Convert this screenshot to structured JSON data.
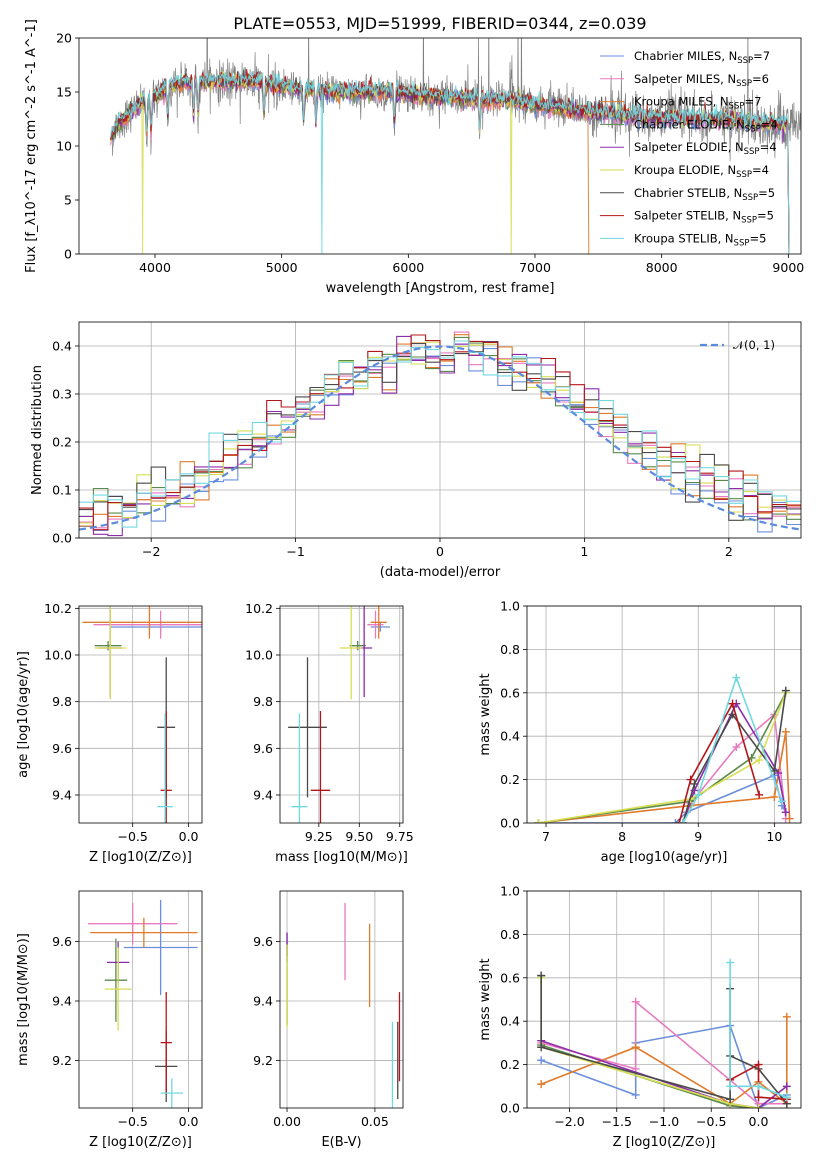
{
  "title": "PLATE=0553, MJD=51999, FIBERID=0344, z=0.039",
  "models": [
    {
      "name": "Chabrier MILES",
      "nssp": "7",
      "color": "#6b8fdd"
    },
    {
      "name": "Salpeter MILES",
      "nssp": "6",
      "color": "#e87ac0"
    },
    {
      "name": "Kroupa MILES",
      "nssp": "7",
      "color": "#e07b2b"
    },
    {
      "name": "Chabrier ELODIE",
      "nssp": "4",
      "color": "#5a8a4a"
    },
    {
      "name": "Salpeter ELODIE",
      "nssp": "4",
      "color": "#8d2cab"
    },
    {
      "name": "Kroupa ELODIE",
      "nssp": "4",
      "color": "#d7de53"
    },
    {
      "name": "Chabrier STELIB",
      "nssp": "5",
      "color": "#4a4a4a"
    },
    {
      "name": "Salpeter STELIB",
      "nssp": "5",
      "color": "#b3161a"
    },
    {
      "name": "Kroupa STELIB",
      "nssp": "5",
      "color": "#72d8e0"
    }
  ],
  "chart_data": [
    {
      "id": "spectrum",
      "type": "line",
      "xlabel": "wavelength [Angstrom, rest frame]",
      "ylabel": "Flux [f_λ10^-17 erg cm^-2 s^-1 A^-1]",
      "xlim": [
        3400,
        9100
      ],
      "ylim": [
        0,
        20
      ],
      "xticks": [
        4000,
        5000,
        6000,
        7000,
        8000,
        9000
      ],
      "yticks": [
        0,
        5,
        10,
        15,
        20
      ],
      "legend": "upper right",
      "data_color": "#808080",
      "data_range": [
        3650,
        9100
      ],
      "continuum": [
        [
          3650,
          10.5
        ],
        [
          3700,
          12
        ],
        [
          3800,
          13
        ],
        [
          3900,
          14
        ],
        [
          4000,
          14.5
        ],
        [
          4100,
          15.5
        ],
        [
          4200,
          15.8
        ],
        [
          4400,
          16
        ],
        [
          4600,
          16
        ],
        [
          4800,
          16
        ],
        [
          5000,
          15.5
        ],
        [
          5200,
          15.2
        ],
        [
          5400,
          15
        ],
        [
          5600,
          15
        ],
        [
          5800,
          15
        ],
        [
          6000,
          14.8
        ],
        [
          6200,
          14.5
        ],
        [
          6400,
          14.5
        ],
        [
          6600,
          14.2
        ],
        [
          6800,
          14.3
        ],
        [
          7000,
          13.8
        ],
        [
          7200,
          13.5
        ],
        [
          7400,
          13.2
        ],
        [
          7600,
          13
        ],
        [
          7800,
          12.7
        ],
        [
          8000,
          12.6
        ],
        [
          8200,
          12.5
        ],
        [
          8400,
          12.5
        ],
        [
          8600,
          12.3
        ],
        [
          8800,
          12.1
        ],
        [
          9000,
          12
        ],
        [
          9100,
          12
        ]
      ],
      "model_cutoffs": [
        9000,
        9000,
        7420,
        9000,
        9000,
        9000,
        9000,
        9000,
        9000
      ],
      "model_drops": [
        {
          "model": 8,
          "wavelength": 5320,
          "flux": 0
        },
        {
          "model": 5,
          "wavelength": 3900,
          "flux": 0
        },
        {
          "model": 5,
          "wavelength": 6810,
          "flux": 0
        }
      ]
    },
    {
      "id": "residual_hist",
      "type": "step",
      "xlabel": "(data-model)/error",
      "ylabel": "Normed distribution",
      "xlim": [
        -2.5,
        2.5
      ],
      "ylim": [
        0,
        0.45
      ],
      "xticks": [
        -2,
        -1,
        0,
        1,
        2
      ],
      "yticks": [
        0,
        0.1,
        0.2,
        0.3,
        0.4
      ],
      "grid": true,
      "legend": "upper right",
      "reference": {
        "label": "𝒩(0, 1)",
        "mean": 0,
        "sigma": 1,
        "color": "#5b8bdc"
      },
      "bin_width": 0.1
    },
    {
      "id": "age_vs_Z",
      "type": "errorbar",
      "xlabel": "Z [log10(Z/Z⊙)]",
      "ylabel": "age [log10(age/yr)]",
      "xlim": [
        -0.98,
        0.12
      ],
      "ylim": [
        9.28,
        10.21
      ],
      "xticks": [
        -0.5,
        0
      ],
      "yticks": [
        9.4,
        9.6,
        9.8,
        10.0,
        10.2
      ],
      "grid": true,
      "points": [
        {
          "m": 0,
          "x": -0.25,
          "y": 10.12,
          "xerr": 0.45,
          "yerr": 0.02
        },
        {
          "m": 1,
          "x": -0.25,
          "y": 10.13,
          "xerr": 0.6,
          "yerr": 0.06
        },
        {
          "m": 2,
          "x": -0.35,
          "y": 10.14,
          "xerr": 0.6,
          "yerr": 0.07
        },
        {
          "m": 3,
          "x": -0.72,
          "y": 10.04,
          "xerr": 0.12,
          "yerr": 0.02
        },
        {
          "m": 4,
          "x": -0.7,
          "y": 10.03,
          "xerr": 0.1,
          "yerr": 0.21
        },
        {
          "m": 5,
          "x": -0.7,
          "y": 10.03,
          "xerr": 0.14,
          "yerr": 0.22
        },
        {
          "m": 6,
          "x": -0.2,
          "y": 9.69,
          "xerr": 0.08,
          "yerr": 0.3
        },
        {
          "m": 7,
          "x": -0.2,
          "y": 9.42,
          "xerr": 0.05,
          "yerr": 0.34
        },
        {
          "m": 8,
          "x": -0.21,
          "y": 9.35,
          "xerr": 0.07,
          "yerr": 0.4
        }
      ]
    },
    {
      "id": "age_vs_mass",
      "type": "errorbar",
      "xlabel": "mass [log10(M/M⊙)]",
      "ylabel": "",
      "xlim": [
        9.01,
        9.77
      ],
      "ylim": [
        9.28,
        10.21
      ],
      "xticks": [
        9.25,
        9.5,
        9.75
      ],
      "yticks": [
        9.4,
        9.6,
        9.8,
        10.0,
        10.2
      ],
      "grid": true,
      "points": [
        {
          "m": 0,
          "x": 9.63,
          "y": 10.12,
          "xerr": 0.06,
          "yerr": 0.02
        },
        {
          "m": 1,
          "x": 9.6,
          "y": 10.13,
          "xerr": 0.05,
          "yerr": 0.06
        },
        {
          "m": 2,
          "x": 9.62,
          "y": 10.14,
          "xerr": 0.05,
          "yerr": 0.07
        },
        {
          "m": 3,
          "x": 9.49,
          "y": 10.04,
          "xerr": 0.05,
          "yerr": 0.02
        },
        {
          "m": 4,
          "x": 9.53,
          "y": 10.03,
          "xerr": 0.05,
          "yerr": 0.21
        },
        {
          "m": 5,
          "x": 9.45,
          "y": 10.03,
          "xerr": 0.07,
          "yerr": 0.22
        },
        {
          "m": 6,
          "x": 9.18,
          "y": 9.69,
          "xerr": 0.12,
          "yerr": 0.3
        },
        {
          "m": 7,
          "x": 9.26,
          "y": 9.42,
          "xerr": 0.06,
          "yerr": 0.34
        },
        {
          "m": 8,
          "x": 9.13,
          "y": 9.35,
          "xerr": 0.05,
          "yerr": 0.4
        }
      ]
    },
    {
      "id": "massweight_vs_age",
      "type": "line",
      "xlabel": "age [log10(age/yr)]",
      "ylabel": "mass weight",
      "xlim": [
        6.75,
        10.35
      ],
      "ylim": [
        0,
        1
      ],
      "xticks": [
        7,
        8,
        9,
        10
      ],
      "yticks": [
        0,
        0.2,
        0.4,
        0.6,
        0.8,
        1.0
      ],
      "grid": true,
      "series": [
        {
          "m": 0,
          "x": [
            6.9,
            8.7,
            8.85,
            10.0,
            10.1,
            10.15
          ],
          "y": [
            0,
            0,
            0.05,
            0.22,
            0.08,
            0.05
          ]
        },
        {
          "m": 1,
          "x": [
            8.8,
            8.9,
            9.5,
            10.0,
            10.15
          ],
          "y": [
            0,
            0.09,
            0.35,
            0.5,
            0.02
          ]
        },
        {
          "m": 2,
          "x": [
            6.9,
            8.9,
            10.0,
            10.15,
            10.2
          ],
          "y": [
            0,
            0.08,
            0.12,
            0.42,
            0.02
          ]
        },
        {
          "m": 3,
          "x": [
            6.9,
            8.9,
            9.7,
            10.15
          ],
          "y": [
            0,
            0.1,
            0.3,
            0.6
          ]
        },
        {
          "m": 4,
          "x": [
            8.8,
            8.95,
            9.5,
            10.05,
            10.15
          ],
          "y": [
            0,
            0.15,
            0.55,
            0.23,
            0.05
          ]
        },
        {
          "m": 5,
          "x": [
            6.9,
            8.9,
            9.8,
            10.15
          ],
          "y": [
            0,
            0.11,
            0.29,
            0.6
          ]
        },
        {
          "m": 6,
          "x": [
            8.8,
            8.95,
            9.45,
            10.0,
            10.15
          ],
          "y": [
            0,
            0.18,
            0.5,
            0.24,
            0.61
          ]
        },
        {
          "m": 7,
          "x": [
            8.75,
            8.9,
            9.45,
            9.8
          ],
          "y": [
            0,
            0.2,
            0.55,
            0.13
          ]
        },
        {
          "m": 8,
          "x": [
            8.8,
            9.0,
            9.5,
            10.1
          ],
          "y": [
            0,
            0.13,
            0.67,
            0.1
          ]
        }
      ]
    },
    {
      "id": "mass_vs_Z",
      "type": "errorbar",
      "xlabel": "Z [log10(Z/Z⊙)]",
      "ylabel": "mass [log10(M/M⊙)]",
      "xlim": [
        -0.98,
        0.12
      ],
      "ylim": [
        9.04,
        9.77
      ],
      "xticks": [
        -0.5,
        0
      ],
      "yticks": [
        9.2,
        9.4,
        9.6
      ],
      "grid": true,
      "points": [
        {
          "m": 0,
          "x": -0.25,
          "y": 9.58,
          "xerr": 0.33,
          "yerr": 0.16
        },
        {
          "m": 1,
          "x": -0.5,
          "y": 9.66,
          "xerr": 0.4,
          "yerr": 0.07
        },
        {
          "m": 2,
          "x": -0.4,
          "y": 9.63,
          "xerr": 0.48,
          "yerr": 0.05
        },
        {
          "m": 3,
          "x": -0.65,
          "y": 9.47,
          "xerr": 0.1,
          "yerr": 0.14
        },
        {
          "m": 4,
          "x": -0.63,
          "y": 9.53,
          "xerr": 0.1,
          "yerr": 0.07
        },
        {
          "m": 5,
          "x": -0.63,
          "y": 9.44,
          "xerr": 0.12,
          "yerr": 0.14
        },
        {
          "m": 6,
          "x": -0.2,
          "y": 9.18,
          "xerr": 0.1,
          "yerr": 0.12
        },
        {
          "m": 7,
          "x": -0.2,
          "y": 9.26,
          "xerr": 0.05,
          "yerr": 0.17
        },
        {
          "m": 8,
          "x": -0.15,
          "y": 9.09,
          "xerr": 0.1,
          "yerr": 0.05
        }
      ]
    },
    {
      "id": "mass_vs_EBV",
      "type": "errorbar",
      "xlabel": "E(B-V)",
      "ylabel": "",
      "xlim": [
        -0.004,
        0.066
      ],
      "ylim": [
        9.04,
        9.77
      ],
      "xticks": [
        0.0,
        0.05
      ],
      "yticks": [
        9.2,
        9.4,
        9.6
      ],
      "grid": true,
      "points": [
        {
          "m": 0,
          "x": 0.0,
          "y": 9.58,
          "xerr": 0,
          "yerr": 0.05
        },
        {
          "m": 1,
          "x": 0.033,
          "y": 9.6,
          "xerr": 0,
          "yerr": 0.13
        },
        {
          "m": 2,
          "x": 0.047,
          "y": 9.52,
          "xerr": 0,
          "yerr": 0.14
        },
        {
          "m": 3,
          "x": 0.0,
          "y": 9.46,
          "xerr": 0,
          "yerr": 0.14
        },
        {
          "m": 4,
          "x": 0.0,
          "y": 9.59,
          "xerr": 0,
          "yerr": 0.04
        },
        {
          "m": 5,
          "x": 0.0,
          "y": 9.45,
          "xerr": 0,
          "yerr": 0.14
        },
        {
          "m": 6,
          "x": 0.063,
          "y": 9.2,
          "xerr": 0,
          "yerr": 0.13
        },
        {
          "m": 7,
          "x": 0.064,
          "y": 9.28,
          "xerr": 0,
          "yerr": 0.15
        },
        {
          "m": 8,
          "x": 0.06,
          "y": 9.15,
          "xerr": 0,
          "yerr": 0.18
        }
      ]
    },
    {
      "id": "massweight_vs_Z",
      "type": "line",
      "xlabel": "Z [log10(Z/Z⊙)]",
      "ylabel": "mass weight",
      "xlim": [
        -2.45,
        0.45
      ],
      "ylim": [
        0,
        1
      ],
      "xticks": [
        -2.0,
        -1.5,
        -1.0,
        -0.5,
        0.0
      ],
      "yticks": [
        0,
        0.2,
        0.4,
        0.6,
        0.8,
        1.0
      ],
      "grid": true,
      "series": [
        {
          "m": 0,
          "x": [
            -2.3,
            -1.3,
            -1.3,
            -0.3,
            0.0,
            0.3
          ],
          "y": [
            0.22,
            0.06,
            0.3,
            0.38,
            0.0,
            0.06
          ]
        },
        {
          "m": 1,
          "x": [
            -2.3,
            -1.3,
            -1.3,
            0.0,
            0.3
          ],
          "y": [
            0.3,
            0.18,
            0.49,
            0.02,
            0.02
          ]
        },
        {
          "m": 2,
          "x": [
            -2.3,
            -1.3,
            -1.3,
            -0.3,
            0.0,
            0.3,
            0.3
          ],
          "y": [
            0.11,
            0.28,
            0.28,
            0.02,
            0.12,
            0.02,
            0.42
          ]
        },
        {
          "m": 3,
          "x": [
            -2.3,
            -2.3,
            -0.3,
            0.0
          ],
          "y": [
            0.61,
            0.29,
            0.01,
            0.0
          ]
        },
        {
          "m": 4,
          "x": [
            -2.3,
            -0.3,
            0.0,
            0.3
          ],
          "y": [
            0.31,
            0.02,
            0.0,
            0.1
          ]
        },
        {
          "m": 5,
          "x": [
            -2.3,
            -2.3,
            -0.3,
            0.0
          ],
          "y": [
            0.6,
            0.28,
            0.02,
            0.0
          ]
        },
        {
          "m": 6,
          "x": [
            -2.3,
            -2.3,
            -0.3,
            -0.3,
            -0.3,
            0.0,
            0.3
          ],
          "y": [
            0.61,
            0.28,
            0.04,
            0.55,
            0.24,
            0.18,
            0.02
          ]
        },
        {
          "m": 7,
          "x": [
            -0.3,
            0.0,
            0.0,
            0.3
          ],
          "y": [
            0.13,
            0.2,
            0.05,
            0.04
          ]
        },
        {
          "m": 8,
          "x": [
            -0.3,
            -0.3,
            0.0,
            0.3
          ],
          "y": [
            0.67,
            0.1,
            0.1,
            0.05
          ]
        }
      ]
    }
  ]
}
